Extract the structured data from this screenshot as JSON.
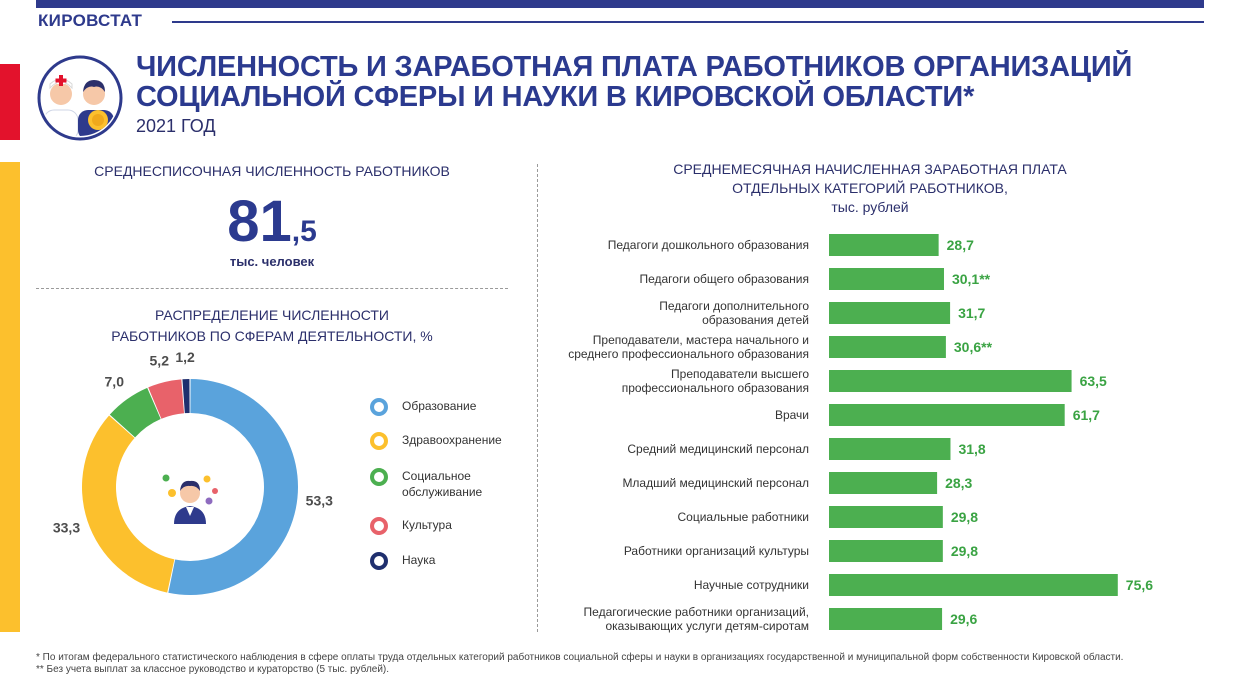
{
  "brand": "КИРОВСТАТ",
  "title_line1": "ЧИСЛЕННОСТЬ И ЗАРАБОТНАЯ ПЛАТА РАБОТНИКОВ ОРГАНИЗАЦИЙ",
  "title_line2": "СОЦИАЛЬНОЙ СФЕРЫ И НАУКИ В КИРОВСКОЙ ОБЛАСТИ*",
  "year": "2021 ГОД",
  "headcount": {
    "heading": "СРЕДНЕСПИСОЧНАЯ ЧИСЛЕННОСТЬ РАБОТНИКОВ",
    "value_int": "81",
    "value_frac": ",5",
    "unit": "тыс. человек"
  },
  "distribution_heading_line1": "РАСПРЕДЕЛЕНИЕ ЧИСЛЕННОСТИ",
  "distribution_heading_line2": "РАБОТНИКОВ ПО СФЕРАМ ДЕЯТЕЛЬНОСТИ, %",
  "salary_heading_line1": "СРЕДНЕМЕСЯЧНАЯ НАЧИСЛЕННАЯ ЗАРАБОТНАЯ ПЛАТА",
  "salary_heading_line2": "ОТДЕЛЬНЫХ КАТЕГОРИЙ РАБОТНИКОВ,",
  "salary_heading_line3": "тыс. рублей",
  "colors": {
    "brand_blue": "#2e3a8c",
    "red_accent": "#e3122c",
    "yellow_accent": "#fcc02d",
    "bar_green": "#4caf50",
    "value_green": "#3aa343"
  },
  "icons": [
    "medical-staff-icon",
    "teacher-icon"
  ],
  "chart_data": [
    {
      "type": "pie",
      "variant": "donut",
      "title": "РАСПРЕДЕЛЕНИЕ ЧИСЛЕННОСТИ РАБОТНИКОВ ПО СФЕРАМ ДЕЯТЕЛЬНОСТИ, %",
      "categories": [
        "Образование",
        "Здравоохранение",
        "Социальное обслуживание",
        "Культура",
        "Наука"
      ],
      "legend_lines": [
        [
          "Образование"
        ],
        [
          "Здравоохранение"
        ],
        [
          "Социальное",
          "обслуживание"
        ],
        [
          "Культура"
        ],
        [
          "Наука"
        ]
      ],
      "values": [
        53.3,
        33.3,
        7.0,
        5.2,
        1.2
      ],
      "labels": [
        "53,3",
        "33,3",
        "7,0",
        "5,2",
        "1,2"
      ],
      "colors": [
        "#5aa3dc",
        "#fcc02d",
        "#4caf50",
        "#e8626a",
        "#1f2f6e"
      ],
      "legend_position": "right"
    },
    {
      "type": "bar",
      "orientation": "horizontal",
      "title": "СРЕДНЕМЕСЯЧНАЯ НАЧИСЛЕННАЯ ЗАРАБОТНАЯ ПЛАТА ОТДЕЛЬНЫХ КАТЕГОРИЙ РАБОТНИКОВ, тыс. рублей",
      "categories": [
        [
          "Педагоги дошкольного образования"
        ],
        [
          "Педагоги общего образования"
        ],
        [
          "Педагоги дополнительного",
          "образования детей"
        ],
        [
          "Преподаватели, мастера начального и",
          "среднего профессионального образования"
        ],
        [
          "Преподаватели высшего",
          "профессионального образования"
        ],
        [
          "Врачи"
        ],
        [
          "Средний медицинский персонал"
        ],
        [
          "Младший медицинский персонал"
        ],
        [
          "Социальные работники"
        ],
        [
          "Работники организаций культуры"
        ],
        [
          "Научные сотрудники"
        ],
        [
          "Педагогические работники организаций,",
          "оказывающих услуги детям-сиротам"
        ]
      ],
      "values": [
        28.7,
        30.1,
        31.7,
        30.6,
        63.5,
        61.7,
        31.8,
        28.3,
        29.8,
        29.8,
        75.6,
        29.6
      ],
      "labels": [
        "28,7",
        "30,1**",
        "31,7",
        "30,6**",
        "63,5",
        "61,7",
        "31,8",
        "28,3",
        "29,8",
        "29,8",
        "75,6",
        "29,6"
      ],
      "color": "#4caf50",
      "grid": false
    }
  ],
  "footnote_1": "* По итогам федерального статистического наблюдения в сфере оплаты труда отдельных категорий работников социальной сферы и науки в организациях государственной и муниципальной форм собственности Кировской области.",
  "footnote_2": "** Без учета выплат за классное руководство и кураторство (5 тыс. рублей)."
}
